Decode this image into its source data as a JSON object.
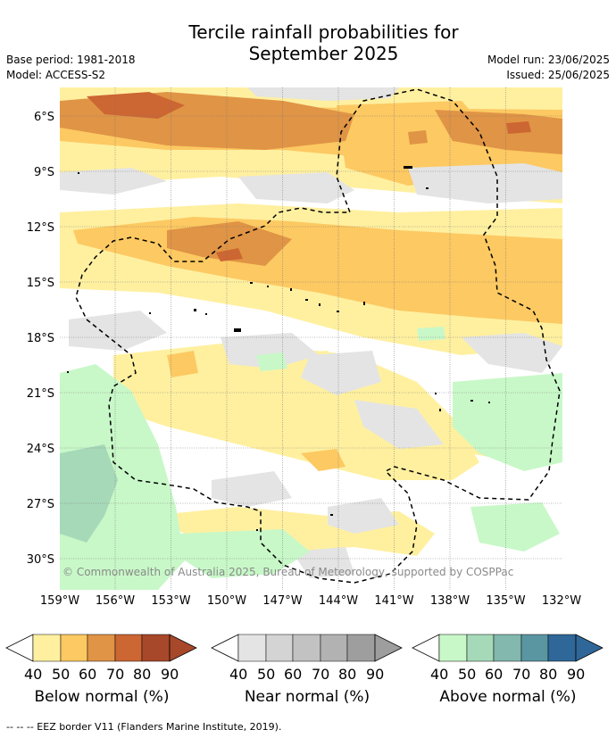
{
  "title_line1": "Tercile rainfall probabilities for",
  "title_line2": "September 2025",
  "base_period": "Base period: 1981-2018",
  "model": "Model: ACCESS-S2",
  "model_run": "Model run: 23/06/2025",
  "issued": "Issued: 25/06/2025",
  "lat_ticks": [
    "6°S",
    "9°S",
    "12°S",
    "15°S",
    "18°S",
    "21°S",
    "24°S",
    "27°S",
    "30°S"
  ],
  "lon_ticks": [
    "159°W",
    "156°W",
    "153°W",
    "150°W",
    "147°W",
    "144°W",
    "141°W",
    "138°W",
    "135°W",
    "132°W"
  ],
  "copyright": "© Commonwealth of Australia 2025, Bureau of Meteorology, supported by COSPPac",
  "colorbars": [
    {
      "label": "Below normal (%)",
      "colors": [
        "#fff0a0",
        "#fdc962",
        "#e09445",
        "#cc6632",
        "#a8482a"
      ],
      "ticks": [
        "40",
        "50",
        "60",
        "70",
        "80",
        "90"
      ]
    },
    {
      "label": "Near normal (%)",
      "colors": [
        "#e4e4e4",
        "#d4d4d4",
        "#c2c2c2",
        "#b2b2b2",
        "#9e9e9e"
      ],
      "ticks": [
        "40",
        "50",
        "60",
        "70",
        "80",
        "90"
      ]
    },
    {
      "label": "Above normal (%)",
      "colors": [
        "#c8f8c8",
        "#a6d9b8",
        "#82b8ad",
        "#5a96a2",
        "#2f6798"
      ],
      "ticks": [
        "40",
        "50",
        "60",
        "70",
        "80",
        "90"
      ]
    }
  ],
  "footer": "--  --  -- EEZ border V11 (Flanders Marine Institute, 2019)."
}
